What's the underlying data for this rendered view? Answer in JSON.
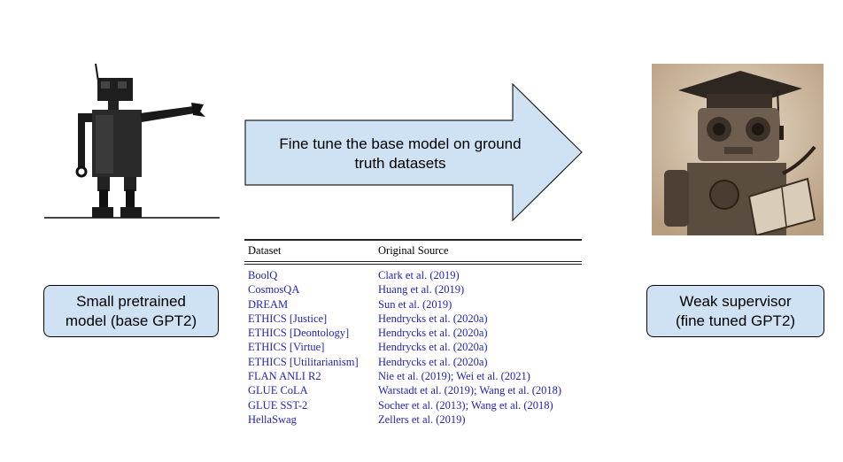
{
  "arrow": {
    "text": "Fine tune the base model on ground\ntruth datasets"
  },
  "left": {
    "label": "Small pretrained\nmodel (base GPT2)"
  },
  "right": {
    "label": "Weak supervisor\n(fine tuned GPT2)"
  },
  "table": {
    "headers": [
      "Dataset",
      "Original Source"
    ],
    "rows": [
      [
        "BoolQ",
        "Clark et al. (2019)"
      ],
      [
        "CosmosQA",
        "Huang et al. (2019)"
      ],
      [
        "DREAM",
        "Sun et al. (2019)"
      ],
      [
        "ETHICS [Justice]",
        "Hendrycks et al. (2020a)"
      ],
      [
        "ETHICS [Deontology]",
        "Hendrycks et al. (2020a)"
      ],
      [
        "ETHICS [Virtue]",
        "Hendrycks et al. (2020a)"
      ],
      [
        "ETHICS [Utilitarianism]",
        "Hendrycks et al. (2020a)"
      ],
      [
        "FLAN ANLI R2",
        "Nie et al. (2019); Wei et al. (2021)"
      ],
      [
        "GLUE CoLA",
        "Warstadt et al. (2019); Wang et al. (2018)"
      ],
      [
        "GLUE SST-2",
        "Socher et al. (2013); Wang et al. (2018)"
      ],
      [
        "HellaSwag",
        "Zellers et al. (2019)"
      ]
    ]
  },
  "colors": {
    "box_fill": "#cfe2f3",
    "link_blue": "#1f1fb4"
  }
}
